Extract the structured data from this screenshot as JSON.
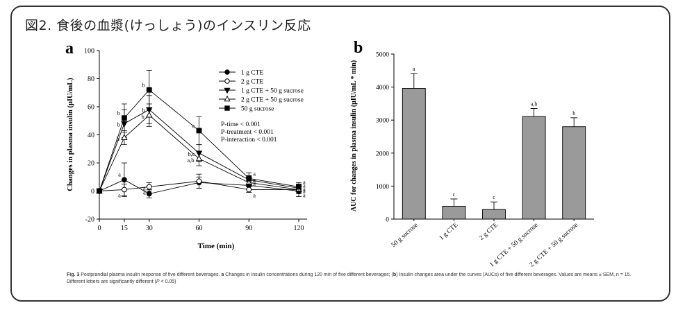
{
  "title": "図2. 食後の血漿(けっしょう)のインスリン反応",
  "caption": {
    "fig_label": "Fig. 3",
    "text_lead": " Postprandial plasma insulin response of five different beverages. ",
    "a_label": "a",
    "text_a": " Changes in insulin concentrations during 120 min of five different beverages; (",
    "b_label": "b",
    "text_b": ") Insulin changes area under the curves (AUCs) of five different beverages. Values are means ± SEM, n = 15. Different letters are significantly different (",
    "p_label": "P",
    "text_end": " < 0.05)"
  },
  "chart_data": [
    {
      "type": "line",
      "panel_label": "a",
      "xlabel": "Time (min)",
      "ylabel": "Changes in plasma insulin (μIU/mL)",
      "xlim": [
        0,
        125
      ],
      "ylim": [
        -20,
        100
      ],
      "x": [
        0,
        15,
        30,
        60,
        90,
        120
      ],
      "xticks": [
        0,
        15,
        30,
        60,
        90,
        120
      ],
      "yticks": [
        -20,
        0,
        20,
        40,
        60,
        80,
        100
      ],
      "series": [
        {
          "name": "1 g CTE",
          "marker": "circle-filled",
          "values": [
            0,
            8,
            -2,
            6,
            4,
            0
          ],
          "errors": [
            0,
            12,
            3,
            4,
            3,
            4
          ],
          "letters": [
            "",
            "a",
            "a",
            "",
            "a",
            "a"
          ]
        },
        {
          "name": "2 g CTE",
          "marker": "circle-open",
          "values": [
            0,
            1,
            3,
            7,
            1,
            1
          ],
          "errors": [
            0,
            4,
            3,
            5,
            2,
            3
          ],
          "letters": [
            "",
            "a",
            "a",
            "",
            "a",
            "a"
          ]
        },
        {
          "name": "1 g CTE + 50 g sucrose",
          "marker": "triangle-down-filled",
          "values": [
            0,
            48,
            58,
            27,
            8,
            2
          ],
          "errors": [
            0,
            10,
            10,
            6,
            3,
            3
          ],
          "letters": [
            "",
            "b",
            "b",
            "b,c",
            "a",
            "a"
          ]
        },
        {
          "name": "2 g CTE + 50 g sucrose",
          "marker": "triangle-up-open",
          "values": [
            0,
            38,
            54,
            23,
            6,
            1
          ],
          "errors": [
            0,
            5,
            8,
            5,
            3,
            3
          ],
          "letters": [
            "",
            "b",
            "b",
            "a,b",
            "a",
            "a"
          ]
        },
        {
          "name": "50 g sucrose",
          "marker": "square-filled",
          "values": [
            0,
            52,
            72,
            43,
            9,
            3
          ],
          "errors": [
            0,
            10,
            14,
            10,
            4,
            3
          ],
          "letters": [
            "",
            "b",
            "b",
            "c",
            "a",
            "a"
          ]
        }
      ],
      "annotations": [
        "P-time < 0.001",
        "P-treatment < 0.001",
        "P-interaction < 0.001"
      ]
    },
    {
      "type": "bar",
      "panel_label": "b",
      "ylabel": "AUC for changes in plasma insulin (μIU/mL * min)",
      "categories": [
        "50 g sucrose",
        "1 g CTE",
        "2 g CTE",
        "1 g CTE + 50 g sucrose",
        "2 g CTE + 50 g sucrose"
      ],
      "values": [
        3960,
        390,
        290,
        3110,
        2800
      ],
      "errors": [
        450,
        220,
        230,
        240,
        270
      ],
      "letters": [
        "a",
        "c",
        "c",
        "a,b",
        "b"
      ],
      "ylim": [
        0,
        5000
      ],
      "yticks": [
        0,
        1000,
        2000,
        3000,
        4000,
        5000
      ]
    }
  ]
}
